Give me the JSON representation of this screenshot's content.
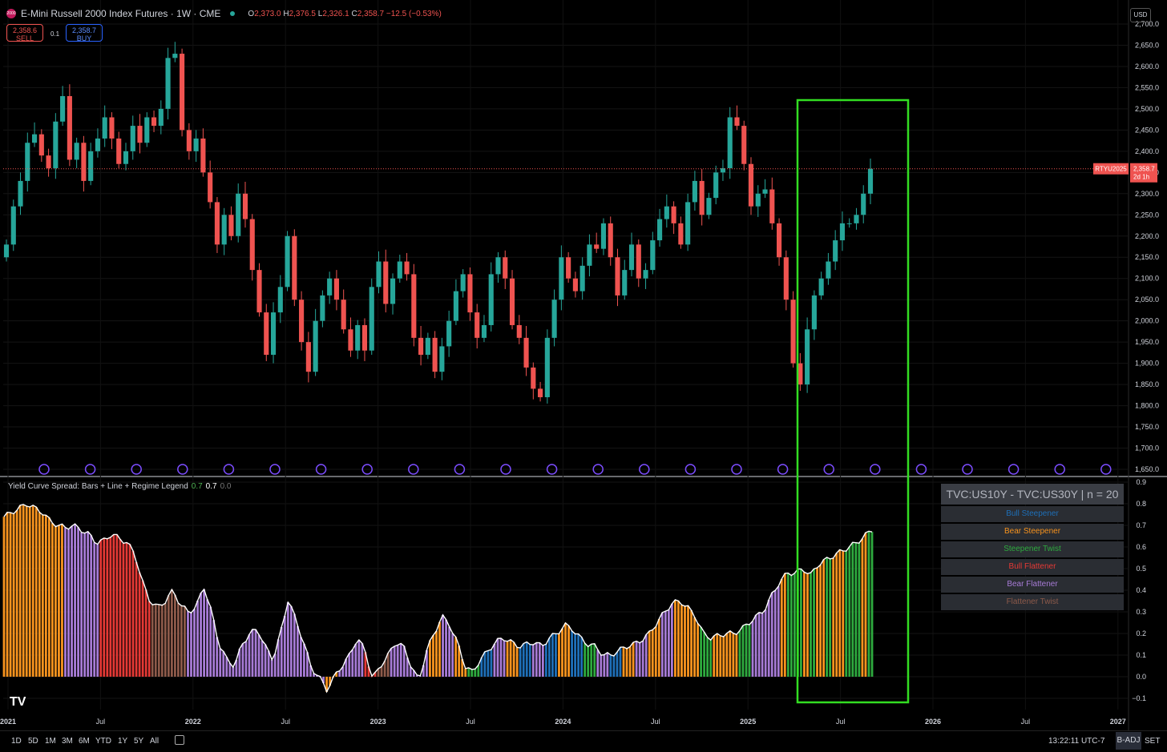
{
  "header": {
    "symbol_badge": "2000",
    "title": "E-Mini Russell 2000 Index Futures · 1W · CME",
    "open_label": "O",
    "open": "2,373.0",
    "high_label": "H",
    "high": "2,376.5",
    "low_label": "L",
    "low": "2,326.1",
    "close_label": "C",
    "close": "2,358.7",
    "change": "−12.5 (−0.53%)"
  },
  "trade": {
    "sell_price": "2,358.6",
    "sell_label": "SELL",
    "spread": "0.1",
    "buy_price": "2,358.7",
    "buy_label": "BUY"
  },
  "currency": "USD",
  "price_label": {
    "symbol": "RTYU2025",
    "price": "2,358.7",
    "countdown": "2d 1h"
  },
  "indicator": {
    "title": "Yield Curve Spread: Bars + Line + Regime Legend",
    "v1": "0.7",
    "v2": "0.7",
    "v3": "0.0"
  },
  "legend": {
    "header": "TVC:US10Y - TVC:US30Y | n = 20",
    "items": [
      {
        "label": "Bull Steepener",
        "color": "#1e6fb8"
      },
      {
        "label": "Bear Steepener",
        "color": "#f7931e"
      },
      {
        "label": "Steepener Twist",
        "color": "#2eaa3e"
      },
      {
        "label": "Bull Flattener",
        "color": "#e53935"
      },
      {
        "label": "Bear Flattener",
        "color": "#a77bd6"
      },
      {
        "label": "Flattener Twist",
        "color": "#8d5a4a"
      }
    ]
  },
  "colors": {
    "up": "#26a69a",
    "down": "#ef5350",
    "highlight": "#33dd22",
    "bull_steepener": "#1e6fb8",
    "bear_steepener": "#f7931e",
    "steepener_twist": "#2eaa3e",
    "bull_flattener": "#e53935",
    "bear_flattener": "#a77bd6",
    "flattener_twist": "#8d5a4a"
  },
  "x_axis_labels": [
    "2021",
    "Jul",
    "2022",
    "Jul",
    "2023",
    "Jul",
    "2024",
    "Jul",
    "2025",
    "Jul",
    "2026",
    "Jul",
    "2027"
  ],
  "timeframes": [
    "1D",
    "5D",
    "1M",
    "3M",
    "6M",
    "YTD",
    "1Y",
    "5Y",
    "All"
  ],
  "clock": "13:22:11 UTC-7",
  "adjust_label": "B-ADJ",
  "settings_label": "SET",
  "chart_data": [
    {
      "type": "candlestick",
      "title": "E-Mini Russell 2000 Index Futures · 1W · CME",
      "x_range": [
        "2021-01",
        "2027-01"
      ],
      "ylim": [
        1650,
        2700
      ],
      "y_ticks": [
        "1,650.0",
        "1,700.0",
        "1,750.0",
        "1,800.0",
        "1,850.0",
        "1,900.0",
        "1,950.0",
        "2,000.0",
        "2,050.0",
        "2,100.0",
        "2,150.0",
        "2,200.0",
        "2,250.0",
        "2,300.0",
        "2,350.0",
        "2,400.0",
        "2,450.0",
        "2,500.0",
        "2,550.0",
        "2,600.0",
        "2,650.0",
        "2,700.0"
      ],
      "y_tick_values": [
        1650,
        1700,
        1750,
        1800,
        1850,
        1900,
        1950,
        2000,
        2050,
        2100,
        2150,
        2200,
        2250,
        2300,
        2350,
        2400,
        2450,
        2500,
        2550,
        2600,
        2650,
        2700
      ],
      "last_price": 2358.7,
      "weekly_close_anchors": [
        2180,
        2270,
        2330,
        2420,
        2440,
        2390,
        2360,
        2470,
        2530,
        2380,
        2420,
        2330,
        2400,
        2430,
        2480,
        2430,
        2370,
        2400,
        2460,
        2420,
        2480,
        2460,
        2500,
        2620,
        2630,
        2450,
        2400,
        2430,
        2350,
        2280,
        2180,
        2250,
        2200,
        2300,
        2240,
        2120,
        2020,
        1920,
        2020,
        2080,
        2200,
        2050,
        1950,
        1880,
        2000,
        2060,
        2100,
        2050,
        1980,
        1930,
        1990,
        1930,
        2080,
        2140,
        2040,
        2100,
        2140,
        2110,
        1960,
        1920,
        1960,
        1880,
        1940,
        2000,
        2070,
        2110,
        2020,
        1960,
        1990,
        2110,
        2150,
        2100,
        1990,
        1960,
        1890,
        1840,
        1820,
        1960,
        2050,
        2150,
        2100,
        2070,
        2130,
        2180,
        2170,
        2230,
        2150,
        2060,
        2120,
        2180,
        2100,
        2120,
        2190,
        2240,
        2270,
        2230,
        2180,
        2280,
        2330,
        2250,
        2290,
        2350,
        2360,
        2480,
        2460,
        2370,
        2270,
        2300,
        2310,
        2230,
        2150,
        2050,
        1900,
        1850,
        1980,
        2060,
        2100,
        2140,
        2190,
        2230,
        2230,
        2250,
        2300,
        2358.7
      ],
      "weekly_closes_note": "",
      "annotations": [
        "RTYU2025 2,358.7"
      ]
    },
    {
      "type": "bar",
      "title": "Yield Curve Spread: Bars + Line + Regime Legend",
      "ylim": [
        -0.1,
        0.9
      ],
      "y_ticks": [
        "−0.1",
        "0.0",
        "0.1",
        "0.2",
        "0.3",
        "0.4",
        "0.5",
        "0.6",
        "0.7",
        "0.8",
        "0.9"
      ],
      "y_tick_values": [
        -0.1,
        0,
        0.1,
        0.2,
        0.3,
        0.4,
        0.5,
        0.6,
        0.7,
        0.8,
        0.9
      ],
      "spread_anchors": [
        0.74,
        0.76,
        0.78,
        0.8,
        0.78,
        0.76,
        0.72,
        0.7,
        0.69,
        0.7,
        0.68,
        0.66,
        0.62,
        0.63,
        0.66,
        0.64,
        0.62,
        0.57,
        0.44,
        0.35,
        0.32,
        0.35,
        0.4,
        0.33,
        0.3,
        0.32,
        0.42,
        0.3,
        0.15,
        0.08,
        0.05,
        0.15,
        0.2,
        0.22,
        0.14,
        0.08,
        0.2,
        0.36,
        0.26,
        0.16,
        0.04,
        0.0,
        -0.06,
        0.0,
        0.05,
        0.1,
        0.18,
        0.12,
        -0.01,
        0.05,
        0.1,
        0.16,
        0.14,
        0.05,
        -0.02,
        0.12,
        0.2,
        0.28,
        0.24,
        0.16,
        0.05,
        0.02,
        0.08,
        0.12,
        0.16,
        0.18,
        0.16,
        0.14,
        0.15,
        0.16,
        0.14,
        0.18,
        0.2,
        0.24,
        0.22,
        0.18,
        0.15,
        0.14,
        0.1,
        0.1,
        0.12,
        0.14,
        0.15,
        0.17,
        0.2,
        0.25,
        0.3,
        0.34,
        0.35,
        0.32,
        0.28,
        0.2,
        0.18,
        0.19,
        0.2,
        0.2,
        0.22,
        0.25,
        0.28,
        0.31,
        0.38,
        0.44,
        0.48,
        0.48,
        0.5,
        0.47,
        0.52,
        0.54,
        0.56,
        0.58,
        0.6,
        0.62,
        0.65,
        0.68
      ],
      "regime_sequence": [
        "bear_steepener",
        "bear_flattener",
        "bear_flattener",
        "bull_flattener",
        "flattener_twist",
        "bear_flattener",
        "bear_flattener",
        "bear_flattener",
        "bear_steepener",
        "bear_flattener",
        "bear_steepener",
        "steepener_twist",
        "bull_steepener",
        "bear_flattener",
        "bear_steepener",
        "bull_steepener",
        "bear_flattener",
        "bull_steepener",
        "bear_steepener",
        "bull_steepener",
        "steepener_twist",
        "bear_flattener",
        "bull_steepener",
        "bear_steepener",
        "bear_flattener",
        "bear_steepener",
        "bear_flattener",
        "bear_steepener",
        "bear_steepener",
        "steepener_twist",
        "bear_steepener",
        "bear_steepener",
        "steepener_twist",
        "bear_steepener"
      ],
      "current_value": 0.7
    }
  ]
}
